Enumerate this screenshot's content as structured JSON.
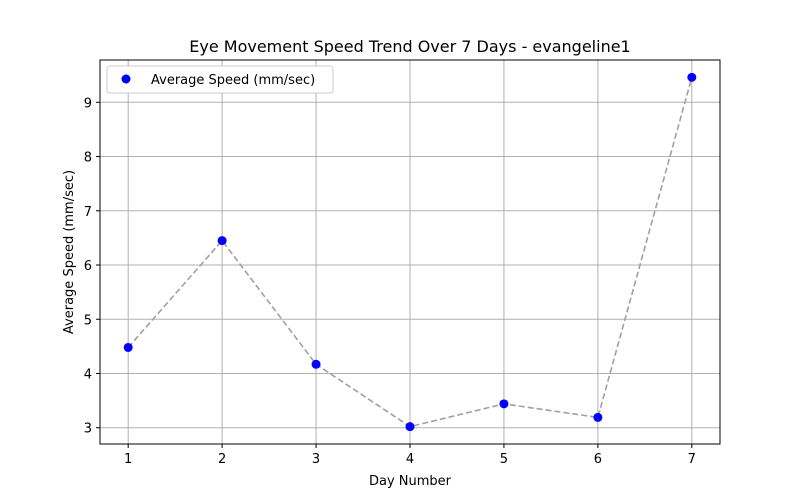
{
  "chart_data": {
    "type": "scatter",
    "title": "Eye Movement Speed Trend Over 7 Days - evangeline1",
    "xlabel": "Day Number",
    "ylabel": "Average Speed (mm/sec)",
    "x": [
      1,
      2,
      3,
      4,
      5,
      6,
      7
    ],
    "series": [
      {
        "name": "Average Speed (mm/sec)",
        "values": [
          4.48,
          6.45,
          4.17,
          3.02,
          3.44,
          3.19,
          9.46
        ],
        "marker_color": "#0000ff",
        "line_color": "#a0a0a0",
        "line_style": "dashed"
      }
    ],
    "xticks": [
      1,
      2,
      3,
      4,
      5,
      6,
      7
    ],
    "yticks": [
      3,
      4,
      5,
      6,
      7,
      8,
      9
    ],
    "xlim": [
      0.7,
      7.3
    ],
    "ylim": [
      2.7,
      9.78
    ],
    "grid": true,
    "legend": "top-left"
  }
}
